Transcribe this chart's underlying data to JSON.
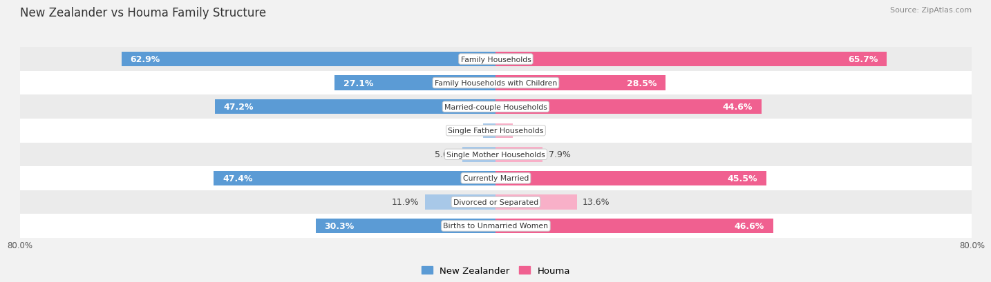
{
  "title": "New Zealander vs Houma Family Structure",
  "source": "Source: ZipAtlas.com",
  "categories": [
    "Family Households",
    "Family Households with Children",
    "Married-couple Households",
    "Single Father Households",
    "Single Mother Households",
    "Currently Married",
    "Divorced or Separated",
    "Births to Unmarried Women"
  ],
  "nz_values": [
    62.9,
    27.1,
    47.2,
    2.1,
    5.6,
    47.4,
    11.9,
    30.3
  ],
  "houma_values": [
    65.7,
    28.5,
    44.6,
    2.9,
    7.9,
    45.5,
    13.6,
    46.6
  ],
  "nz_color_large": "#5b9bd5",
  "nz_color_small": "#a8c8e8",
  "houma_color_large": "#f06090",
  "houma_color_small": "#f8b0c8",
  "axis_min": -80.0,
  "axis_max": 80.0,
  "bg_color": "#f2f2f2",
  "row_colors": [
    "#ffffff",
    "#ebebeb"
  ],
  "label_fontsize": 9,
  "title_fontsize": 12,
  "source_fontsize": 8,
  "legend_nz": "New Zealander",
  "legend_houma": "Houma",
  "axis_left_label": "80.0%",
  "axis_right_label": "80.0%",
  "large_threshold": 15
}
